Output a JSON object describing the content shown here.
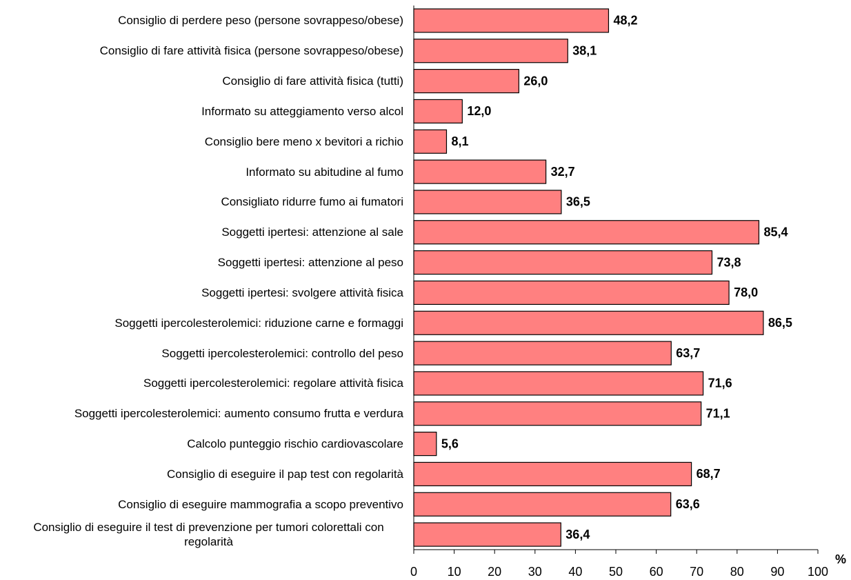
{
  "chart_data": {
    "type": "bar",
    "orientation": "horizontal",
    "categories": [
      "Consiglio di perdere peso (persone sovrappeso/obese)",
      "Consiglio di fare attività fisica (persone sovrappeso/obese)",
      "Consiglio di fare attività fisica (tutti)",
      "Informato su atteggiamento verso alcol",
      "Consiglio bere meno x bevitori a richio",
      "Informato su abitudine al fumo",
      "Consigliato ridurre fumo ai fumatori",
      "Soggetti ipertesi: attenzione al sale",
      "Soggetti ipertesi: attenzione al peso",
      "Soggetti ipertesi: svolgere attività fisica",
      "Soggetti ipercolesterolemici: riduzione carne e formaggi",
      "Soggetti ipercolesterolemici: controllo del peso",
      "Soggetti ipercolesterolemici: regolare attività fisica",
      "Soggetti ipercolesterolemici: aumento consumo frutta e verdura",
      "Calcolo punteggio rischio cardiovascolare",
      "Consiglio di eseguire il pap test con regolarità",
      "Consiglio di eseguire mammografia a scopo preventivo",
      "Consiglio di eseguire il test di prevenzione per tumori colorettali con regolarità"
    ],
    "values": [
      48.2,
      38.1,
      26.0,
      12.0,
      8.1,
      32.7,
      36.5,
      85.4,
      73.8,
      78.0,
      86.5,
      63.7,
      71.6,
      71.1,
      5.6,
      68.7,
      63.6,
      36.4
    ],
    "value_labels": [
      "48,2",
      "38,1",
      "26,0",
      "12,0",
      "8,1",
      "32,7",
      "36,5",
      "85,4",
      "73,8",
      "78,0",
      "86,5",
      "63,7",
      "71,6",
      "71,1",
      "5,6",
      "68,7",
      "63,6",
      "36,4"
    ],
    "color": "#ff8080",
    "xlabel": "%",
    "xlim": [
      0,
      100
    ],
    "xticks": [
      0,
      10,
      20,
      30,
      40,
      50,
      60,
      70,
      80,
      90,
      100
    ],
    "grid": false
  }
}
